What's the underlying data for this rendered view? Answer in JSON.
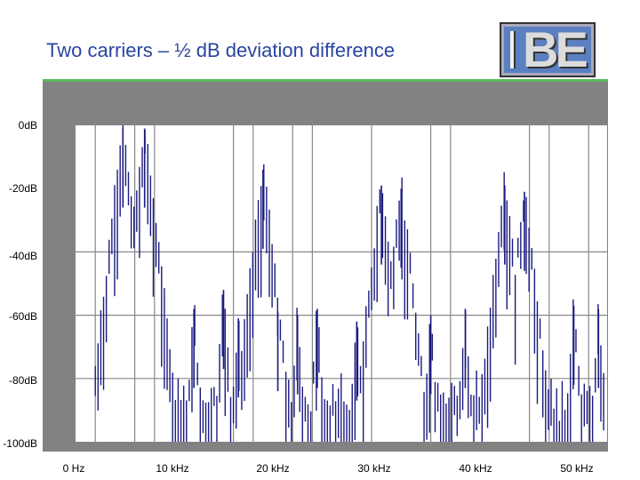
{
  "slide": {
    "title": "Two carriers – ½ dB deviation difference",
    "logo_text": "BE",
    "accent_color": "#5cb85c",
    "title_color": "#2a45a0"
  },
  "chart_data": {
    "type": "line",
    "title": "",
    "xlabel": "",
    "ylabel": "",
    "ylim": [
      -100,
      0
    ],
    "xlim": [
      0,
      54
    ],
    "x_unit": "kHz",
    "y_tick_labels": [
      "0dB",
      "-20dB",
      "-40dB",
      "-60dB",
      "-80dB",
      "-100dB"
    ],
    "x_tick_labels": [
      "0 Hz",
      "10 kHz",
      "20 kHz",
      "30 kHz",
      "40 kHz",
      "50 kHz"
    ],
    "grid": true,
    "series_color": "#1a1a80",
    "main_peaks": [
      {
        "freq": 4.8,
        "db": -1
      },
      {
        "freq": 7.0,
        "db": -1
      },
      {
        "freq": 19.0,
        "db": -14
      },
      {
        "freq": 31.0,
        "db": -19
      },
      {
        "freq": 33.0,
        "db": -20
      },
      {
        "freq": 43.5,
        "db": -19
      },
      {
        "freq": 45.5,
        "db": -21
      }
    ],
    "sideband_peaks": [
      {
        "freq": 12.0,
        "db": -58
      },
      {
        "freq": 15.0,
        "db": -52
      },
      {
        "freq": 16.5,
        "db": -61
      },
      {
        "freq": 20.5,
        "db": -59
      },
      {
        "freq": 22.5,
        "db": -60
      },
      {
        "freq": 24.5,
        "db": -58
      },
      {
        "freq": 28.5,
        "db": -62
      },
      {
        "freq": 36.0,
        "db": -60
      },
      {
        "freq": 39.5,
        "db": -58
      },
      {
        "freq": 50.5,
        "db": -57
      },
      {
        "freq": 53.0,
        "db": -58
      }
    ],
    "noise_floor_db": [
      -100,
      -80
    ]
  }
}
